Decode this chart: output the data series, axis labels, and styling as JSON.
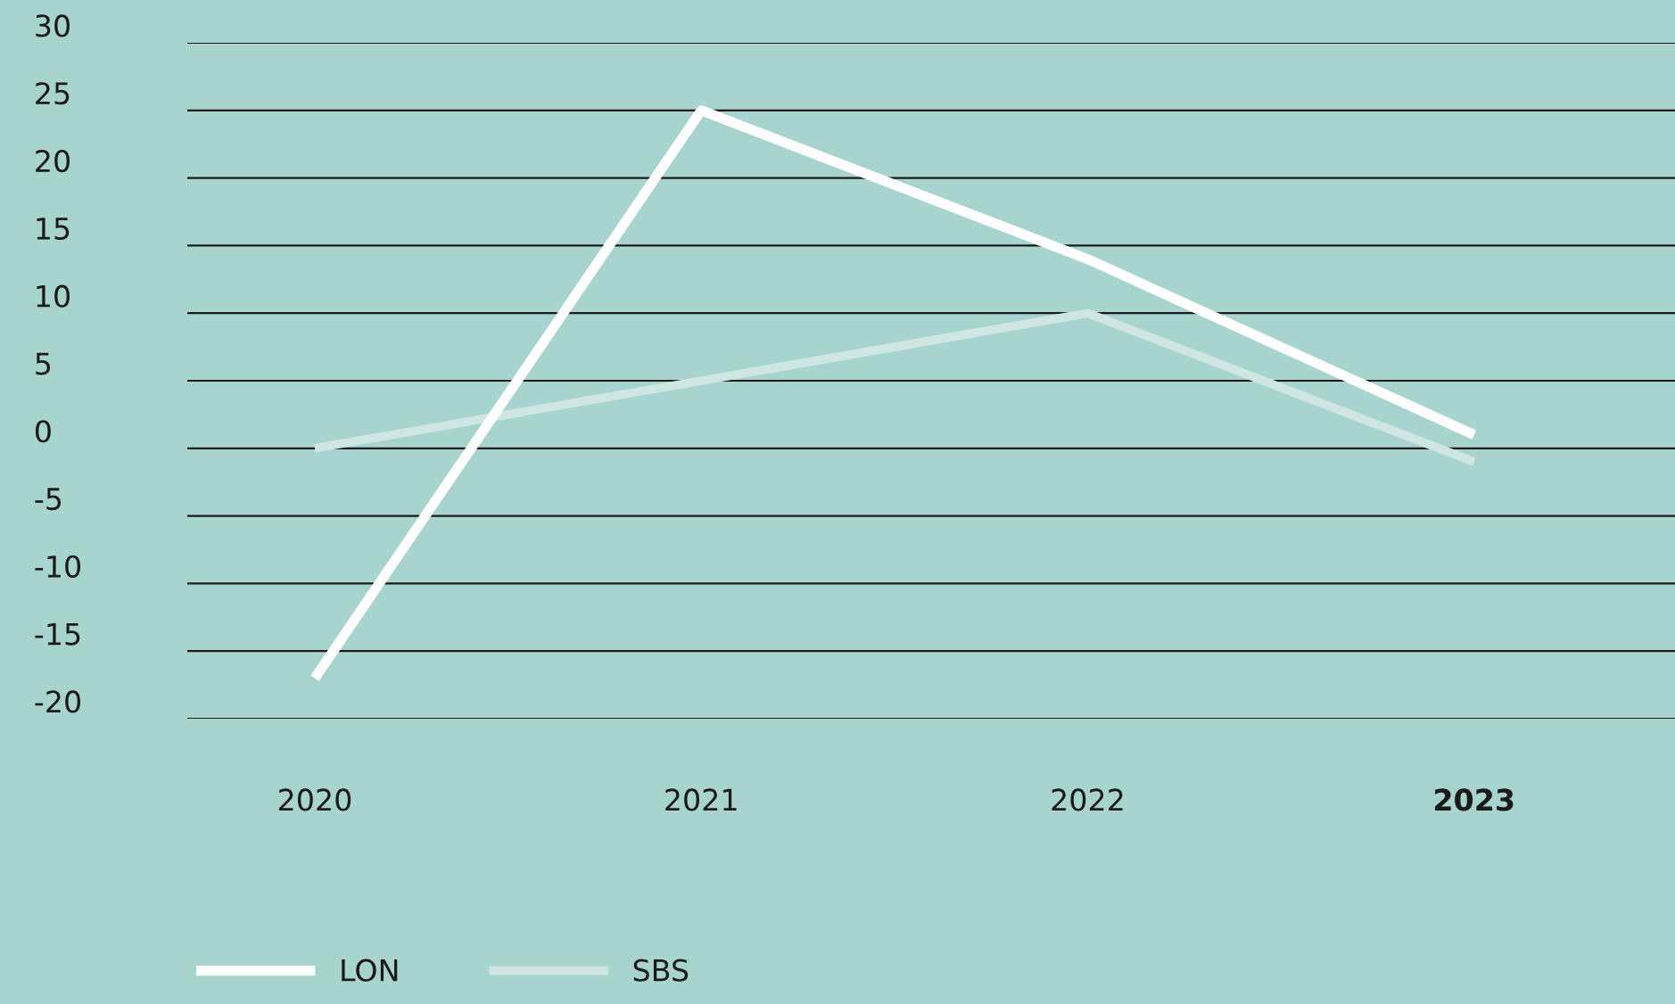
{
  "chart_data": {
    "type": "line",
    "categories": [
      "2020",
      "2021",
      "2022",
      "2023"
    ],
    "series": [
      {
        "name": "LON",
        "color": "#ffffff",
        "values": [
          -17,
          25,
          14,
          1
        ]
      },
      {
        "name": "SBS",
        "color": "#cfe6e3",
        "values": [
          0,
          5,
          10,
          -1
        ]
      }
    ],
    "ylim": [
      -20,
      30
    ],
    "yticks": [
      -20,
      -15,
      -10,
      -5,
      0,
      5,
      10,
      15,
      20,
      25,
      30
    ],
    "grid": "y",
    "legend": "bottom left",
    "marker": "none",
    "line_style": "solid"
  }
}
